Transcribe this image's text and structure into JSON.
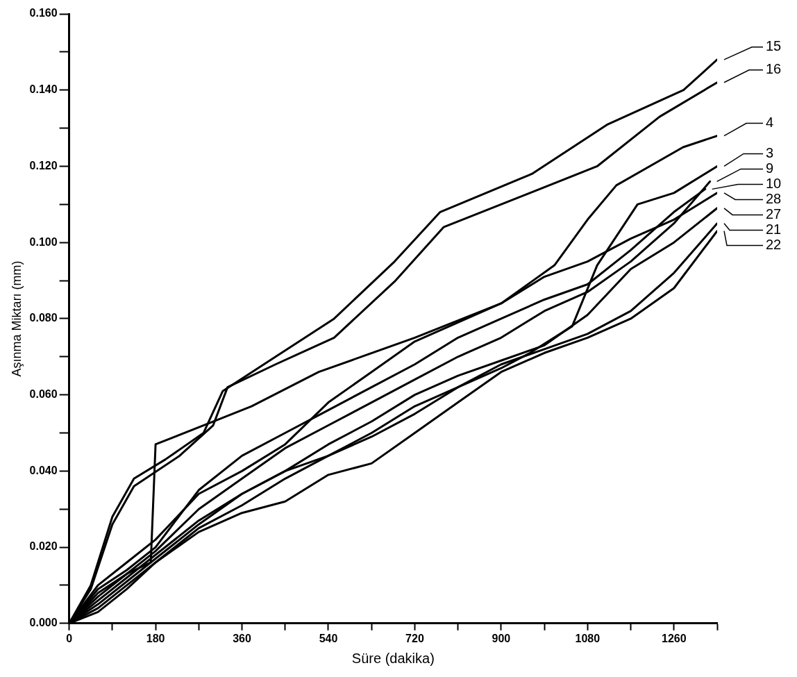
{
  "chart_data": {
    "type": "line",
    "xlabel": "Süre (dakika)",
    "ylabel": "Aşınma Miktarı (mm)",
    "xlim": [
      0,
      1350
    ],
    "ylim": [
      0,
      0.16
    ],
    "xticks": [
      0,
      {
        "value": 90,
        "label": null
      },
      180,
      {
        "value": 270,
        "label": null
      },
      360,
      {
        "value": 450,
        "label": null
      },
      540,
      {
        "value": 630,
        "label": null
      },
      720,
      {
        "value": 810,
        "label": null
      },
      900,
      {
        "value": 990,
        "label": null
      },
      1080,
      {
        "value": 1170,
        "label": null
      },
      1260,
      {
        "value": 1350,
        "label": null
      }
    ],
    "yticks": [
      {
        "value": 0,
        "label": "0.000"
      },
      {
        "value": 0.01,
        "label": null
      },
      {
        "value": 0.02,
        "label": "0.020"
      },
      {
        "value": 0.03,
        "label": null
      },
      {
        "value": 0.04,
        "label": "0.040"
      },
      {
        "value": 0.05,
        "label": null
      },
      {
        "value": 0.06,
        "label": "0.060"
      },
      {
        "value": 0.07,
        "label": null
      },
      {
        "value": 0.08,
        "label": "0.080"
      },
      {
        "value": 0.09,
        "label": null
      },
      {
        "value": 0.1,
        "label": "0.100"
      },
      {
        "value": 0.11,
        "label": null
      },
      {
        "value": 0.12,
        "label": "0.120"
      },
      {
        "value": 0.13,
        "label": null
      },
      {
        "value": 0.14,
        "label": "0.140"
      },
      {
        "value": 0.15,
        "label": null
      },
      {
        "value": 0.16,
        "label": "0.160"
      }
    ],
    "grid": false,
    "legend": "right",
    "marker": "none",
    "line_style": "solid",
    "series": [
      {
        "name": "15",
        "color": "#000000",
        "x": [
          0,
          45,
          90,
          135,
          200,
          280,
          320,
          430,
          552,
          678,
          773,
          964,
          1122,
          1280,
          1350
        ],
        "values": [
          0,
          0.01,
          0.028,
          0.038,
          0.043,
          0.05,
          0.061,
          0.07,
          0.08,
          0.095,
          0.108,
          0.118,
          0.131,
          0.14,
          0.148
        ]
      },
      {
        "name": "16",
        "color": "#000000",
        "x": [
          0,
          45,
          90,
          135,
          230,
          300,
          330,
          430,
          552,
          680,
          780,
          960,
          1100,
          1230,
          1350
        ],
        "values": [
          0,
          0.009,
          0.026,
          0.036,
          0.044,
          0.052,
          0.062,
          0.068,
          0.075,
          0.09,
          0.104,
          0.113,
          0.12,
          0.133,
          0.142
        ]
      },
      {
        "name": "4",
        "color": "#000000",
        "x": [
          0,
          60,
          120,
          170,
          180,
          300,
          380,
          520,
          720,
          900,
          1011,
          1080,
          1140,
          1279,
          1350
        ],
        "values": [
          0,
          0.008,
          0.013,
          0.016,
          0.047,
          0.053,
          0.057,
          0.066,
          0.075,
          0.084,
          0.094,
          0.106,
          0.115,
          0.125,
          0.128
        ]
      },
      {
        "name": "3",
        "color": "#000000",
        "x": [
          0,
          60,
          120,
          180,
          270,
          360,
          450,
          540,
          630,
          720,
          810,
          900,
          960,
          1048,
          1100,
          1184,
          1260,
          1350
        ],
        "values": [
          0,
          0.006,
          0.012,
          0.018,
          0.027,
          0.034,
          0.04,
          0.044,
          0.05,
          0.057,
          0.062,
          0.067,
          0.071,
          0.078,
          0.094,
          0.11,
          0.113,
          0.12
        ]
      },
      {
        "name": "9",
        "color": "#000000",
        "x": [
          0,
          60,
          120,
          180,
          270,
          360,
          450,
          540,
          630,
          720,
          810,
          900,
          990,
          1080,
          1170,
          1260,
          1335
        ],
        "values": [
          0,
          0.007,
          0.013,
          0.019,
          0.03,
          0.038,
          0.046,
          0.052,
          0.058,
          0.064,
          0.07,
          0.075,
          0.082,
          0.087,
          0.095,
          0.105,
          0.116
        ]
      },
      {
        "name": "10",
        "color": "#000000",
        "x": [
          0,
          60,
          120,
          180,
          270,
          360,
          450,
          540,
          630,
          720,
          810,
          900,
          990,
          1080,
          1170,
          1260,
          1325
        ],
        "values": [
          0,
          0.009,
          0.014,
          0.02,
          0.035,
          0.044,
          0.05,
          0.056,
          0.062,
          0.068,
          0.075,
          0.08,
          0.085,
          0.089,
          0.098,
          0.108,
          0.114
        ]
      },
      {
        "name": "28",
        "color": "#000000",
        "x": [
          0,
          60,
          120,
          180,
          270,
          360,
          450,
          540,
          630,
          720,
          810,
          900,
          990,
          1080,
          1170,
          1260,
          1350
        ],
        "values": [
          0,
          0.01,
          0.016,
          0.022,
          0.034,
          0.04,
          0.047,
          0.058,
          0.066,
          0.074,
          0.079,
          0.084,
          0.091,
          0.095,
          0.101,
          0.106,
          0.113
        ]
      },
      {
        "name": "27",
        "color": "#000000",
        "x": [
          0,
          60,
          120,
          180,
          270,
          360,
          450,
          540,
          630,
          720,
          810,
          900,
          990,
          1080,
          1170,
          1260,
          1350
        ],
        "values": [
          0,
          0.005,
          0.011,
          0.017,
          0.026,
          0.034,
          0.04,
          0.047,
          0.053,
          0.06,
          0.065,
          0.069,
          0.073,
          0.081,
          0.093,
          0.1,
          0.109
        ]
      },
      {
        "name": "21",
        "color": "#000000",
        "x": [
          0,
          60,
          120,
          180,
          270,
          360,
          450,
          540,
          630,
          720,
          810,
          900,
          990,
          1080,
          1170,
          1260,
          1350
        ],
        "values": [
          0,
          0.004,
          0.01,
          0.016,
          0.025,
          0.031,
          0.038,
          0.044,
          0.049,
          0.055,
          0.062,
          0.068,
          0.072,
          0.076,
          0.082,
          0.092,
          0.105
        ]
      },
      {
        "name": "22",
        "color": "#000000",
        "x": [
          0,
          60,
          120,
          180,
          270,
          360,
          450,
          540,
          630,
          720,
          810,
          900,
          990,
          1080,
          1170,
          1260,
          1350
        ],
        "values": [
          0,
          0.003,
          0.009,
          0.016,
          0.024,
          0.029,
          0.032,
          0.039,
          0.042,
          0.05,
          0.058,
          0.066,
          0.071,
          0.075,
          0.08,
          0.088,
          0.103
        ]
      }
    ]
  }
}
